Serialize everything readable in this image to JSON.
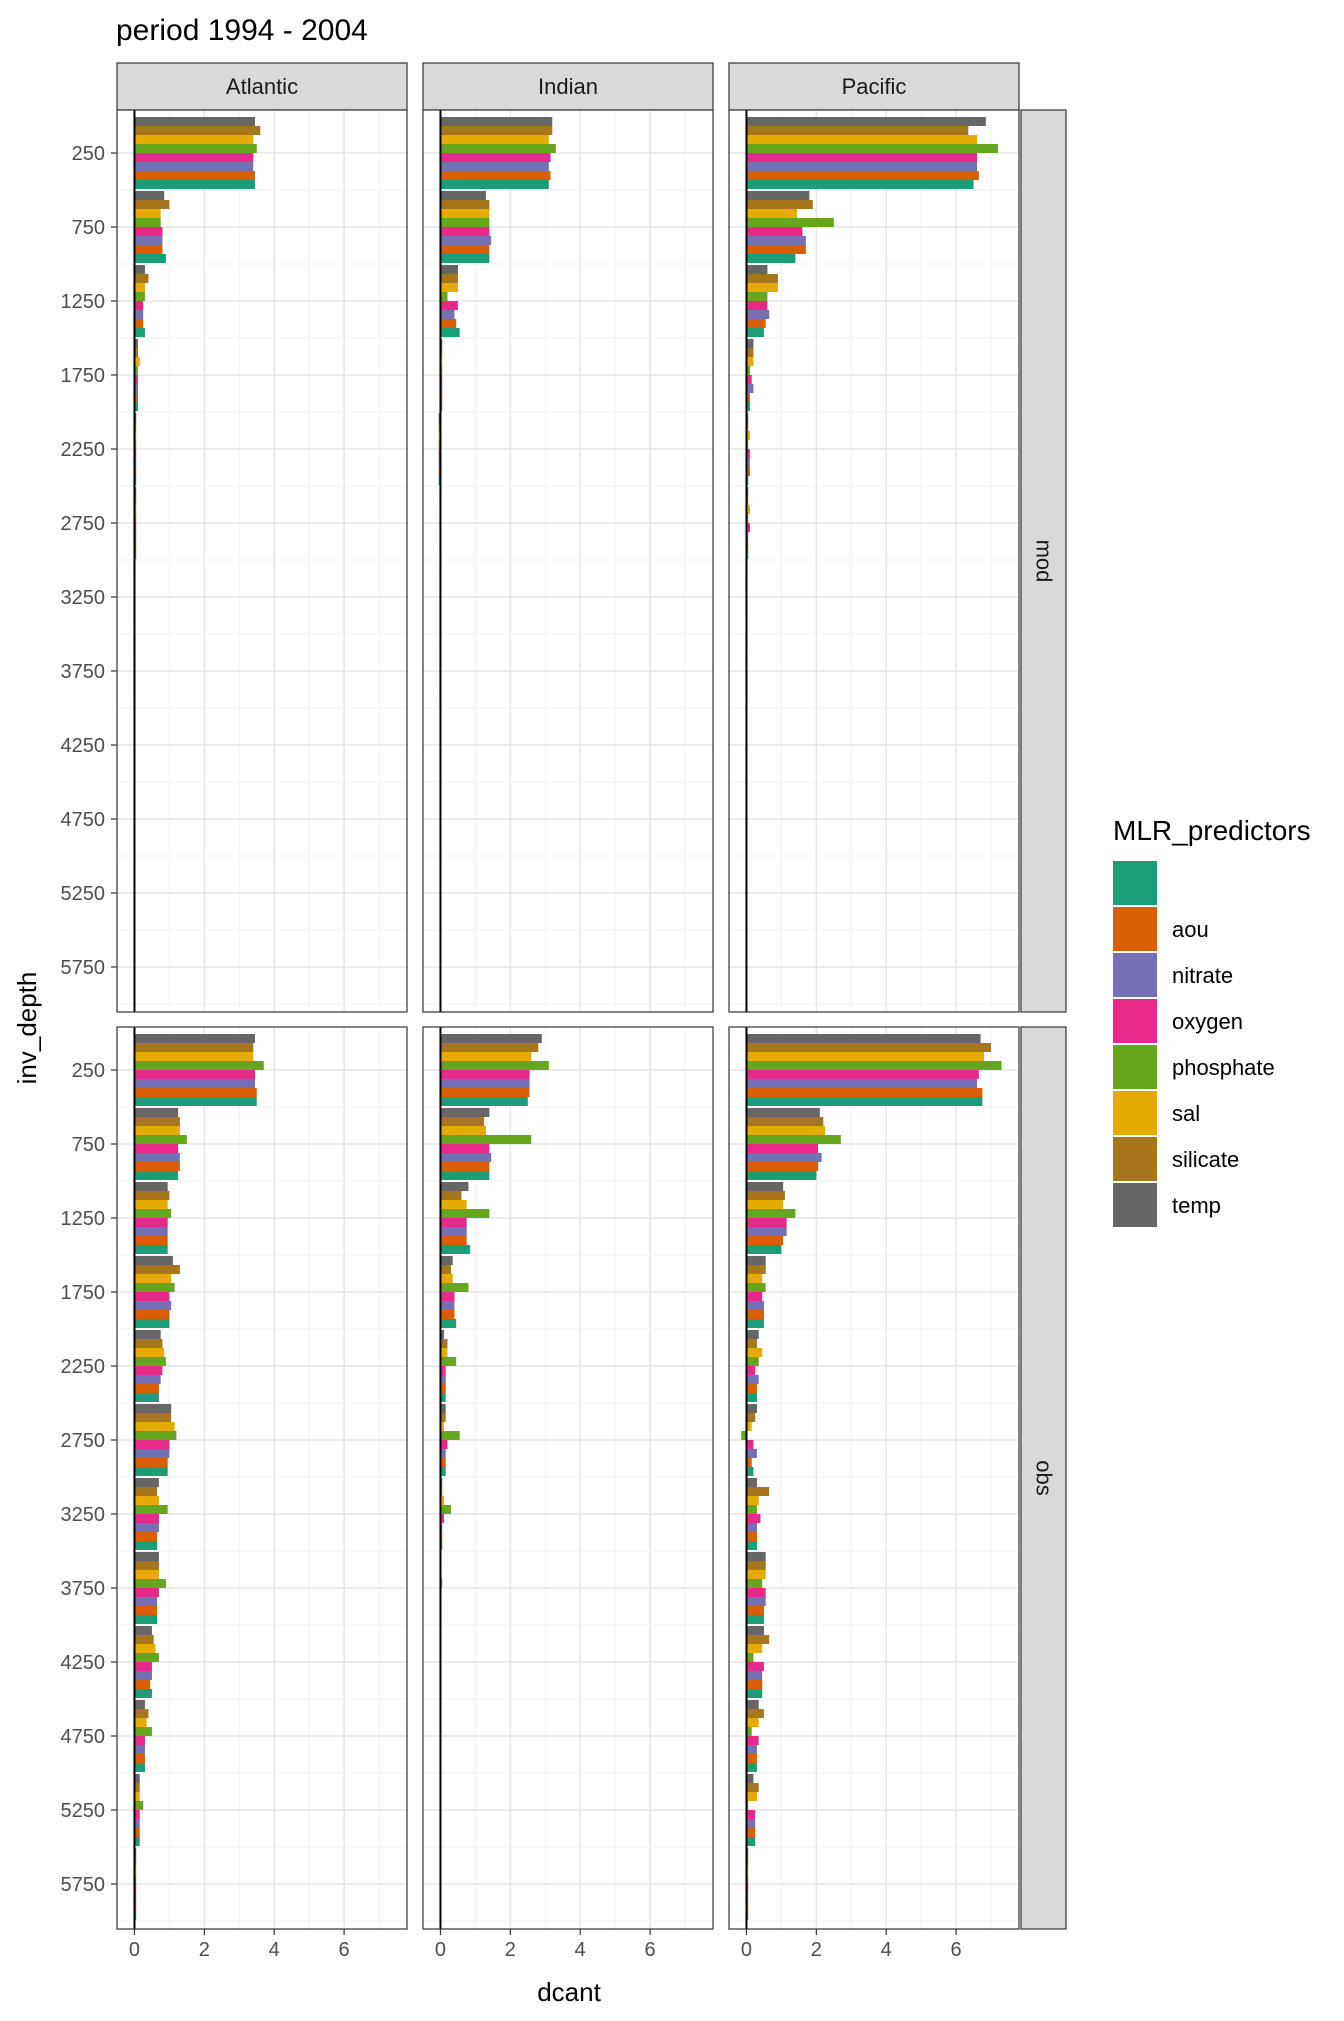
{
  "chart_data": {
    "type": "bar",
    "orientation": "horizontal",
    "title": "period 1994 - 2004",
    "xlabel": "dcant",
    "ylabel": "inv_depth",
    "facet_columns": [
      "Atlantic",
      "Indian",
      "Pacific"
    ],
    "facet_rows": [
      "mod",
      "obs"
    ],
    "xlim": [
      -0.5,
      7.8
    ],
    "x_ticks": [
      0,
      2,
      4,
      6
    ],
    "y_ticks": [
      250,
      750,
      1250,
      1750,
      2250,
      2750,
      3250,
      3750,
      4250,
      4750,
      5250,
      5750
    ],
    "depth_bins": [
      250,
      750,
      1250,
      1750,
      2250,
      2750,
      3250,
      3750,
      4250,
      4750,
      5250,
      5750
    ],
    "grid": true,
    "legend": {
      "title": "MLR_predictors",
      "position": "right",
      "entries": [
        "",
        "aou",
        "nitrate",
        "oxygen",
        "phosphate",
        "sal",
        "silicate",
        "temp"
      ]
    },
    "series_colors": [
      "#1b9e77",
      "#d95f02",
      "#7570b3",
      "#e7298a",
      "#66a61e",
      "#e6ab02",
      "#a6761d",
      "#666666"
    ],
    "panels": [
      {
        "ocean": "Atlantic",
        "source": "mod",
        "values": [
          [
            3.45,
            3.45,
            3.4,
            3.4,
            3.5,
            3.4,
            3.6,
            3.45
          ],
          [
            0.9,
            0.8,
            0.8,
            0.8,
            0.75,
            0.75,
            1.0,
            0.85
          ],
          [
            0.3,
            0.25,
            0.25,
            0.25,
            0.3,
            0.3,
            0.4,
            0.3
          ],
          [
            0.1,
            0.1,
            0.1,
            0.1,
            0.1,
            0.15,
            0.1,
            0.1
          ],
          [
            0.05,
            0.05,
            0.05,
            0.05,
            0.05,
            0.05,
            0.05,
            0.05
          ],
          [
            0.05,
            0.05,
            0.05,
            0.05,
            0.05,
            0.05,
            0.05,
            0.05
          ],
          [
            0.03,
            0.03,
            0.03,
            0.03,
            0.03,
            0.03,
            0.03,
            0.03
          ],
          [
            0.03,
            0.03,
            0.03,
            0.03,
            0.03,
            0.03,
            0.03,
            0.03
          ],
          [
            0.02,
            0.02,
            0.02,
            0.02,
            0.02,
            0.02,
            0.02,
            0.02
          ],
          [
            0.01,
            0.01,
            0.01,
            0.01,
            0.01,
            0.01,
            0.01,
            0.01
          ],
          [
            0,
            0,
            0,
            0,
            0,
            0,
            0,
            0
          ],
          [
            0,
            0,
            0,
            0,
            0,
            0,
            0,
            0
          ]
        ]
      },
      {
        "ocean": "Indian",
        "source": "mod",
        "values": [
          [
            3.1,
            3.15,
            3.1,
            3.15,
            3.3,
            3.1,
            3.2,
            3.2
          ],
          [
            1.4,
            1.4,
            1.45,
            1.4,
            1.4,
            1.4,
            1.4,
            1.3
          ],
          [
            0.55,
            0.45,
            0.4,
            0.5,
            0.2,
            0.5,
            0.5,
            0.5
          ],
          [
            0.05,
            0.05,
            0.05,
            0.05,
            0.05,
            0.05,
            0.05,
            0.05
          ],
          [
            -0.05,
            -0.05,
            -0.05,
            -0.05,
            -0.05,
            -0.05,
            -0.05,
            -0.05
          ],
          [
            -0.03,
            -0.03,
            -0.03,
            -0.03,
            -0.03,
            -0.03,
            -0.03,
            -0.03
          ],
          [
            -0.03,
            -0.03,
            -0.03,
            -0.03,
            -0.03,
            -0.03,
            -0.03,
            -0.03
          ],
          [
            -0.03,
            -0.03,
            -0.03,
            -0.03,
            -0.03,
            -0.03,
            -0.03,
            -0.03
          ],
          [
            -0.02,
            -0.02,
            -0.02,
            -0.02,
            -0.02,
            -0.02,
            -0.02,
            -0.02
          ],
          [
            -0.02,
            -0.02,
            -0.02,
            -0.02,
            -0.02,
            -0.02,
            -0.02,
            -0.02
          ],
          [
            0,
            0,
            0,
            0,
            0,
            0,
            0,
            0
          ],
          [
            0,
            0,
            0,
            0,
            0,
            0,
            0,
            0
          ]
        ]
      },
      {
        "ocean": "Pacific",
        "source": "mod",
        "values": [
          [
            6.5,
            6.65,
            6.6,
            6.6,
            7.2,
            6.6,
            6.35,
            6.85
          ],
          [
            1.4,
            1.7,
            1.7,
            1.6,
            2.5,
            1.45,
            1.9,
            1.8
          ],
          [
            0.5,
            0.55,
            0.65,
            0.6,
            0.6,
            0.9,
            0.9,
            0.6
          ],
          [
            0.1,
            0.1,
            0.2,
            0.15,
            0.1,
            0.2,
            0.2,
            0.2
          ],
          [
            0.05,
            0.1,
            0.1,
            0.1,
            0.05,
            0.1,
            0.05,
            0.05
          ],
          [
            0.05,
            0.05,
            0.05,
            0.1,
            0.05,
            0.1,
            0.05,
            0.05
          ],
          [
            0.03,
            0.03,
            0.03,
            0.03,
            0.03,
            0.03,
            0.03,
            0.03
          ],
          [
            0.03,
            0.03,
            0.03,
            0.03,
            0.03,
            0.03,
            0.03,
            0.03
          ],
          [
            0.02,
            0.02,
            0.02,
            0.02,
            0.02,
            0.02,
            0.02,
            0.02
          ],
          [
            0.02,
            0.02,
            0.02,
            0.02,
            0.02,
            0.02,
            0.02,
            0.02
          ],
          [
            0,
            0,
            0,
            0,
            0,
            0,
            0,
            0
          ],
          [
            0,
            0,
            0,
            0,
            0,
            0,
            0,
            0
          ]
        ]
      },
      {
        "ocean": "Atlantic",
        "source": "obs",
        "values": [
          [
            3.5,
            3.5,
            3.45,
            3.45,
            3.7,
            3.4,
            3.4,
            3.45
          ],
          [
            1.25,
            1.3,
            1.3,
            1.25,
            1.5,
            1.3,
            1.3,
            1.25
          ],
          [
            0.95,
            0.95,
            0.95,
            0.95,
            1.05,
            0.95,
            1.0,
            0.95
          ],
          [
            1.0,
            1.0,
            1.05,
            1.0,
            1.15,
            1.05,
            1.3,
            1.1
          ],
          [
            0.7,
            0.7,
            0.75,
            0.8,
            0.9,
            0.85,
            0.8,
            0.75
          ],
          [
            0.95,
            0.95,
            1.0,
            1.0,
            1.2,
            1.15,
            1.05,
            1.05
          ],
          [
            0.65,
            0.65,
            0.7,
            0.7,
            0.95,
            0.7,
            0.65,
            0.7
          ],
          [
            0.65,
            0.65,
            0.65,
            0.7,
            0.9,
            0.7,
            0.7,
            0.7
          ],
          [
            0.5,
            0.45,
            0.5,
            0.5,
            0.7,
            0.6,
            0.55,
            0.5
          ],
          [
            0.3,
            0.3,
            0.3,
            0.3,
            0.5,
            0.35,
            0.4,
            0.3
          ],
          [
            0.15,
            0.15,
            0.15,
            0.15,
            0.25,
            0.15,
            0.15,
            0.15
          ],
          [
            0.05,
            0.05,
            0.05,
            0.05,
            0.05,
            0.05,
            0.05,
            0.05
          ]
        ]
      },
      {
        "ocean": "Indian",
        "source": "obs",
        "values": [
          [
            2.5,
            2.55,
            2.55,
            2.55,
            3.1,
            2.6,
            2.8,
            2.9
          ],
          [
            1.4,
            1.4,
            1.45,
            1.4,
            2.6,
            1.3,
            1.25,
            1.4
          ],
          [
            0.85,
            0.75,
            0.75,
            0.75,
            1.4,
            0.75,
            0.6,
            0.8
          ],
          [
            0.45,
            0.4,
            0.4,
            0.4,
            0.8,
            0.35,
            0.3,
            0.35
          ],
          [
            0.15,
            0.15,
            0.15,
            0.15,
            0.45,
            0.2,
            0.2,
            0.1
          ],
          [
            0.15,
            0.15,
            0.15,
            0.2,
            0.55,
            0.1,
            0.15,
            0.15
          ],
          [
            0.05,
            0.05,
            0.05,
            0.1,
            0.3,
            0.1,
            0.05,
            0.05
          ],
          [
            0.03,
            0.03,
            0.03,
            0.03,
            0.05,
            0.03,
            0.03,
            0.03
          ],
          [
            0.02,
            0.02,
            0.02,
            0.02,
            0.02,
            0.02,
            0.02,
            0.02
          ],
          [
            0.01,
            0.01,
            0.01,
            0.01,
            0.01,
            0.01,
            0.01,
            0.01
          ],
          [
            0,
            0,
            0,
            0,
            0,
            0,
            0,
            0
          ],
          [
            0,
            0,
            0,
            0,
            0,
            0,
            0,
            0
          ]
        ]
      },
      {
        "ocean": "Pacific",
        "source": "obs",
        "values": [
          [
            6.75,
            6.75,
            6.6,
            6.65,
            7.3,
            6.8,
            7.0,
            6.7
          ],
          [
            2.0,
            2.05,
            2.15,
            2.05,
            2.7,
            2.25,
            2.2,
            2.1
          ],
          [
            1.0,
            1.05,
            1.15,
            1.15,
            1.4,
            1.05,
            1.1,
            1.05
          ],
          [
            0.5,
            0.5,
            0.5,
            0.45,
            0.55,
            0.45,
            0.55,
            0.55
          ],
          [
            0.3,
            0.3,
            0.35,
            0.25,
            0.35,
            0.45,
            0.3,
            0.35
          ],
          [
            0.2,
            0.15,
            0.3,
            0.2,
            -0.15,
            0.15,
            0.25,
            0.3
          ],
          [
            0.3,
            0.3,
            0.3,
            0.4,
            0.3,
            0.35,
            0.65,
            0.3
          ],
          [
            0.5,
            0.5,
            0.55,
            0.55,
            0.45,
            0.55,
            0.55,
            0.55
          ],
          [
            0.45,
            0.45,
            0.45,
            0.5,
            0.2,
            0.45,
            0.65,
            0.5
          ],
          [
            0.3,
            0.3,
            0.3,
            0.35,
            0.15,
            0.35,
            0.5,
            0.35
          ],
          [
            0.25,
            0.25,
            0.25,
            0.25,
            0.05,
            0.3,
            0.35,
            0.2
          ],
          [
            0.05,
            0.05,
            0.05,
            0.05,
            0.05,
            0.05,
            0.05,
            0.05
          ]
        ]
      }
    ]
  }
}
